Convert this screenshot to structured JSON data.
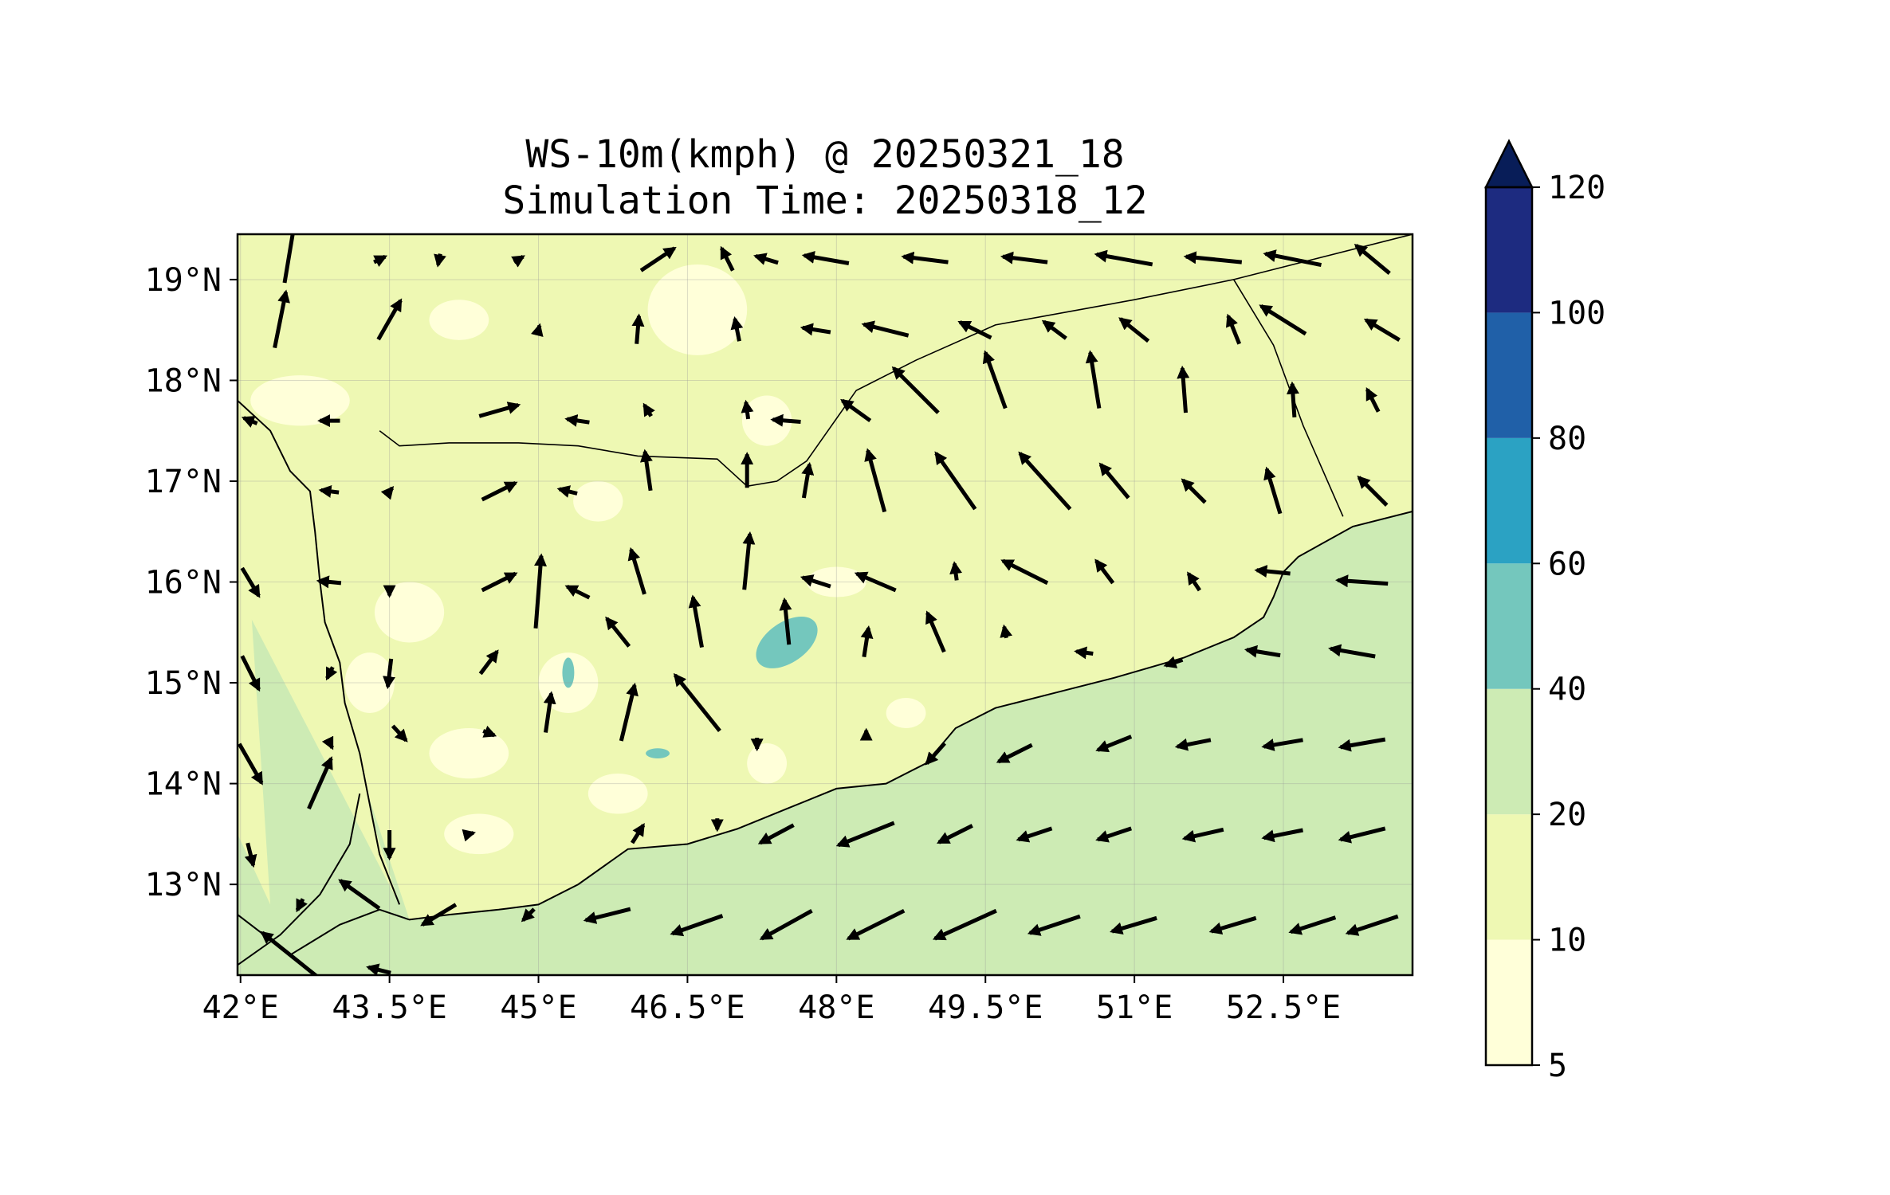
{
  "title_line1": "WS-10m(kmph) @ 20250321_18",
  "title_line2": "Simulation Time: 20250318_12",
  "map": {
    "lon_range": [
      41.97,
      53.8
    ],
    "lat_range": [
      12.1,
      19.45
    ],
    "lon_ticks": [
      {
        "value": 42,
        "label": "42°E"
      },
      {
        "value": 43.5,
        "label": "43.5°E"
      },
      {
        "value": 45,
        "label": "45°E"
      },
      {
        "value": 46.5,
        "label": "46.5°E"
      },
      {
        "value": 48,
        "label": "48°E"
      },
      {
        "value": 49.5,
        "label": "49.5°E"
      },
      {
        "value": 51,
        "label": "51°E"
      },
      {
        "value": 52.5,
        "label": "52.5°E"
      }
    ],
    "lat_ticks": [
      {
        "value": 13,
        "label": "13°N"
      },
      {
        "value": 14,
        "label": "14°N"
      },
      {
        "value": 15,
        "label": "15°N"
      },
      {
        "value": 16,
        "label": "16°N"
      },
      {
        "value": 17,
        "label": "17°N"
      },
      {
        "value": 18,
        "label": "18°N"
      },
      {
        "value": 19,
        "label": "19°N"
      }
    ],
    "gridlines": true,
    "coastline": [
      [
        41.97,
        12.7
      ],
      [
        42.5,
        12.3
      ],
      [
        43.0,
        12.6
      ],
      [
        43.4,
        12.75
      ],
      [
        43.7,
        12.65
      ],
      [
        44.1,
        12.7
      ],
      [
        44.6,
        12.75
      ],
      [
        45.0,
        12.8
      ],
      [
        45.4,
        13.0
      ],
      [
        45.9,
        13.35
      ],
      [
        46.5,
        13.4
      ],
      [
        47.0,
        13.55
      ],
      [
        47.5,
        13.75
      ],
      [
        48.0,
        13.95
      ],
      [
        48.5,
        14.0
      ],
      [
        48.9,
        14.2
      ],
      [
        49.2,
        14.55
      ],
      [
        49.6,
        14.75
      ],
      [
        50.2,
        14.9
      ],
      [
        50.8,
        15.05
      ],
      [
        51.5,
        15.25
      ],
      [
        52.0,
        15.45
      ],
      [
        52.3,
        15.65
      ],
      [
        52.4,
        15.85
      ],
      [
        52.5,
        16.1
      ],
      [
        52.65,
        16.25
      ],
      [
        53.2,
        16.55
      ],
      [
        53.8,
        16.7
      ]
    ],
    "red_sea_coast": [
      [
        41.97,
        17.8
      ],
      [
        42.3,
        17.5
      ],
      [
        42.5,
        17.1
      ],
      [
        42.7,
        16.9
      ],
      [
        42.75,
        16.5
      ],
      [
        42.8,
        16.0
      ],
      [
        42.85,
        15.6
      ],
      [
        43.0,
        15.2
      ],
      [
        43.05,
        14.8
      ],
      [
        43.2,
        14.3
      ],
      [
        43.3,
        13.8
      ],
      [
        43.4,
        13.3
      ],
      [
        43.6,
        12.8
      ]
    ],
    "borders": [
      [
        [
          43.4,
          17.5
        ],
        [
          43.6,
          17.35
        ],
        [
          44.1,
          17.38
        ],
        [
          44.8,
          17.38
        ],
        [
          45.4,
          17.35
        ],
        [
          46.0,
          17.25
        ],
        [
          46.8,
          17.22
        ],
        [
          47.1,
          16.95
        ],
        [
          47.4,
          17.0
        ],
        [
          47.7,
          17.2
        ],
        [
          48.2,
          17.9
        ],
        [
          48.8,
          18.2
        ],
        [
          49.6,
          18.55
        ],
        [
          51.0,
          18.8
        ],
        [
          52.0,
          19.0
        ],
        [
          52.4,
          18.35
        ],
        [
          52.7,
          17.55
        ],
        [
          53.1,
          16.65
        ]
      ],
      [
        [
          52.0,
          19.0
        ],
        [
          53.8,
          19.45
        ]
      ]
    ],
    "eritrea_coast": [
      [
        41.97,
        12.2
      ],
      [
        42.4,
        12.5
      ],
      [
        42.8,
        12.9
      ],
      [
        43.1,
        13.4
      ],
      [
        43.2,
        13.9
      ]
    ]
  },
  "wind_barbs": [
    {
      "lon": 42.5,
      "lat": 19.3,
      "u": 1,
      "v": 6
    },
    {
      "lon": 43.4,
      "lat": 19.2,
      "u": 1,
      "v": 0.5
    },
    {
      "lon": 44.0,
      "lat": 19.2,
      "u": -0.2,
      "v": -1
    },
    {
      "lon": 44.8,
      "lat": 19.2,
      "u": 0.8,
      "v": 0.5
    },
    {
      "lon": 46.2,
      "lat": 19.2,
      "u": 3,
      "v": 2
    },
    {
      "lon": 46.9,
      "lat": 19.2,
      "u": -1,
      "v": 2
    },
    {
      "lon": 47.3,
      "lat": 19.2,
      "u": -2,
      "v": 0.6
    },
    {
      "lon": 47.9,
      "lat": 19.2,
      "u": -4,
      "v": 0.7
    },
    {
      "lon": 48.9,
      "lat": 19.2,
      "u": -4,
      "v": 0.5
    },
    {
      "lon": 49.9,
      "lat": 19.2,
      "u": -4,
      "v": 0.5
    },
    {
      "lon": 50.9,
      "lat": 19.2,
      "u": -5,
      "v": 0.9
    },
    {
      "lon": 51.8,
      "lat": 19.2,
      "u": -5,
      "v": 0.5
    },
    {
      "lon": 52.6,
      "lat": 19.2,
      "u": -5,
      "v": 1
    },
    {
      "lon": 53.4,
      "lat": 19.2,
      "u": -3,
      "v": 2.5
    },
    {
      "lon": 42.4,
      "lat": 18.6,
      "u": 1,
      "v": 5
    },
    {
      "lon": 43.5,
      "lat": 18.6,
      "u": 2,
      "v": 3.5
    },
    {
      "lon": 45.0,
      "lat": 18.5,
      "u": 0.2,
      "v": 0.8
    },
    {
      "lon": 46.0,
      "lat": 18.5,
      "u": 0.2,
      "v": 2.5
    },
    {
      "lon": 47.0,
      "lat": 18.5,
      "u": -0.4,
      "v": 2
    },
    {
      "lon": 47.8,
      "lat": 18.5,
      "u": -2.5,
      "v": 0.4
    },
    {
      "lon": 48.5,
      "lat": 18.5,
      "u": -4,
      "v": 1
    },
    {
      "lon": 49.4,
      "lat": 18.5,
      "u": -2.8,
      "v": 1.4
    },
    {
      "lon": 50.2,
      "lat": 18.5,
      "u": -2,
      "v": 1.5
    },
    {
      "lon": 51.0,
      "lat": 18.5,
      "u": -2.5,
      "v": 2
    },
    {
      "lon": 52.0,
      "lat": 18.5,
      "u": -1,
      "v": 2.5
    },
    {
      "lon": 52.5,
      "lat": 18.6,
      "u": -4,
      "v": 2.5
    },
    {
      "lon": 53.5,
      "lat": 18.5,
      "u": -3,
      "v": 1.8
    },
    {
      "lon": 42.1,
      "lat": 17.6,
      "u": -1.2,
      "v": 0.5
    },
    {
      "lon": 42.9,
      "lat": 17.6,
      "u": -1.8,
      "v": 0
    },
    {
      "lon": 44.6,
      "lat": 17.7,
      "u": 3.5,
      "v": 1
    },
    {
      "lon": 45.4,
      "lat": 17.6,
      "u": -2,
      "v": 0.3
    },
    {
      "lon": 46.1,
      "lat": 17.7,
      "u": -0.6,
      "v": 1
    },
    {
      "lon": 47.1,
      "lat": 17.7,
      "u": -0.2,
      "v": 1.5
    },
    {
      "lon": 47.5,
      "lat": 17.6,
      "u": -2.5,
      "v": 0.2
    },
    {
      "lon": 48.2,
      "lat": 17.7,
      "u": -2.5,
      "v": 1.8
    },
    {
      "lon": 48.8,
      "lat": 17.9,
      "u": -4,
      "v": 4
    },
    {
      "lon": 49.6,
      "lat": 18.0,
      "u": -1.8,
      "v": 5
    },
    {
      "lon": 50.6,
      "lat": 18.0,
      "u": -0.8,
      "v": 5
    },
    {
      "lon": 51.5,
      "lat": 17.9,
      "u": -0.3,
      "v": 4
    },
    {
      "lon": 52.6,
      "lat": 17.8,
      "u": -0.2,
      "v": 3
    },
    {
      "lon": 53.4,
      "lat": 17.8,
      "u": -1,
      "v": 2
    },
    {
      "lon": 42.9,
      "lat": 16.9,
      "u": -1.6,
      "v": 0.2
    },
    {
      "lon": 43.5,
      "lat": 16.9,
      "u": 0.5,
      "v": 0.6
    },
    {
      "lon": 44.6,
      "lat": 16.9,
      "u": 3,
      "v": 1.5
    },
    {
      "lon": 45.3,
      "lat": 16.9,
      "u": -1.6,
      "v": 0.4
    },
    {
      "lon": 46.1,
      "lat": 17.1,
      "u": -0.5,
      "v": 3.5
    },
    {
      "lon": 47.1,
      "lat": 17.1,
      "u": 0,
      "v": 3
    },
    {
      "lon": 47.7,
      "lat": 17.0,
      "u": 0.5,
      "v": 3
    },
    {
      "lon": 48.4,
      "lat": 17.0,
      "u": -1.5,
      "v": 5.5
    },
    {
      "lon": 49.2,
      "lat": 17.0,
      "u": -3.5,
      "v": 5
    },
    {
      "lon": 50.1,
      "lat": 17.0,
      "u": -4.5,
      "v": 5
    },
    {
      "lon": 50.8,
      "lat": 17.0,
      "u": -2.5,
      "v": 3
    },
    {
      "lon": 51.6,
      "lat": 16.9,
      "u": -2,
      "v": 2
    },
    {
      "lon": 52.4,
      "lat": 16.9,
      "u": -1.2,
      "v": 4
    },
    {
      "lon": 53.4,
      "lat": 16.9,
      "u": -2.5,
      "v": 2.5
    },
    {
      "lon": 42.1,
      "lat": 16.0,
      "u": 1.5,
      "v": -2.5
    },
    {
      "lon": 42.9,
      "lat": 16.0,
      "u": -2,
      "v": 0.2
    },
    {
      "lon": 43.5,
      "lat": 15.9,
      "u": 0,
      "v": -0.6
    },
    {
      "lon": 44.6,
      "lat": 16.0,
      "u": 3,
      "v": 1.5
    },
    {
      "lon": 45.4,
      "lat": 15.9,
      "u": -2,
      "v": 1
    },
    {
      "lon": 46.0,
      "lat": 16.1,
      "u": -1.2,
      "v": 4
    },
    {
      "lon": 47.1,
      "lat": 16.2,
      "u": 0.5,
      "v": 5
    },
    {
      "lon": 47.8,
      "lat": 16.0,
      "u": -2.5,
      "v": 0.8
    },
    {
      "lon": 48.4,
      "lat": 16.0,
      "u": -3.5,
      "v": 1.5
    },
    {
      "lon": 49.2,
      "lat": 16.1,
      "u": -0.2,
      "v": 1.5
    },
    {
      "lon": 49.9,
      "lat": 16.1,
      "u": -4,
      "v": 2
    },
    {
      "lon": 50.7,
      "lat": 16.1,
      "u": -1.5,
      "v": 2
    },
    {
      "lon": 51.6,
      "lat": 16.0,
      "u": -1,
      "v": 1.5
    },
    {
      "lon": 52.4,
      "lat": 16.1,
      "u": -3,
      "v": 0.3
    },
    {
      "lon": 53.3,
      "lat": 16.0,
      "u": -4.5,
      "v": 0.3
    },
    {
      "lon": 42.1,
      "lat": 15.1,
      "u": 1.5,
      "v": -3
    },
    {
      "lon": 42.9,
      "lat": 15.1,
      "u": -0.5,
      "v": -1
    },
    {
      "lon": 43.5,
      "lat": 15.1,
      "u": -0.3,
      "v": -2.5
    },
    {
      "lon": 44.5,
      "lat": 15.2,
      "u": 1.5,
      "v": 2
    },
    {
      "lon": 45.0,
      "lat": 15.9,
      "u": 0.5,
      "v": 6.5
    },
    {
      "lon": 45.8,
      "lat": 15.5,
      "u": -2,
      "v": 2.5
    },
    {
      "lon": 46.6,
      "lat": 15.6,
      "u": -0.8,
      "v": 4.5
    },
    {
      "lon": 47.5,
      "lat": 15.6,
      "u": -0.4,
      "v": 4
    },
    {
      "lon": 48.3,
      "lat": 15.4,
      "u": 0.4,
      "v": 2.6
    },
    {
      "lon": 49.0,
      "lat": 15.5,
      "u": -1.5,
      "v": 3.5
    },
    {
      "lon": 49.7,
      "lat": 15.5,
      "u": -0.2,
      "v": 1
    },
    {
      "lon": 50.5,
      "lat": 15.3,
      "u": -1.5,
      "v": 0.2
    },
    {
      "lon": 51.4,
      "lat": 15.2,
      "u": -1.5,
      "v": -0.5
    },
    {
      "lon": 52.3,
      "lat": 15.3,
      "u": -3,
      "v": 0.5
    },
    {
      "lon": 53.2,
      "lat": 15.3,
      "u": -4,
      "v": 0.7
    },
    {
      "lon": 42.1,
      "lat": 14.2,
      "u": 2,
      "v": -3.5
    },
    {
      "lon": 42.8,
      "lat": 14.0,
      "u": 2,
      "v": 4.5
    },
    {
      "lon": 42.9,
      "lat": 14.4,
      "u": 0.4,
      "v": -0.8
    },
    {
      "lon": 43.6,
      "lat": 14.5,
      "u": 1.2,
      "v": -1.3
    },
    {
      "lon": 44.5,
      "lat": 14.5,
      "u": 1,
      "v": -0.4
    },
    {
      "lon": 45.1,
      "lat": 14.7,
      "u": 0.5,
      "v": 3.5
    },
    {
      "lon": 45.9,
      "lat": 14.7,
      "u": 1.2,
      "v": 5
    },
    {
      "lon": 46.6,
      "lat": 14.8,
      "u": -4,
      "v": 5
    },
    {
      "lon": 47.2,
      "lat": 14.4,
      "u": 0,
      "v": -1
    },
    {
      "lon": 48.3,
      "lat": 14.5,
      "u": 0,
      "v": 0.5
    },
    {
      "lon": 49.0,
      "lat": 14.3,
      "u": -1.6,
      "v": -1.8
    },
    {
      "lon": 49.8,
      "lat": 14.3,
      "u": -3,
      "v": -1.5
    },
    {
      "lon": 50.8,
      "lat": 14.4,
      "u": -3,
      "v": -1.2
    },
    {
      "lon": 51.6,
      "lat": 14.4,
      "u": -3,
      "v": -0.6
    },
    {
      "lon": 52.5,
      "lat": 14.4,
      "u": -3.5,
      "v": -0.6
    },
    {
      "lon": 53.3,
      "lat": 14.4,
      "u": -4,
      "v": -0.7
    },
    {
      "lon": 42.1,
      "lat": 13.3,
      "u": 0.5,
      "v": -2
    },
    {
      "lon": 43.5,
      "lat": 13.4,
      "u": 0,
      "v": -2.5
    },
    {
      "lon": 44.3,
      "lat": 13.5,
      "u": 0.8,
      "v": 0.2
    },
    {
      "lon": 46.0,
      "lat": 13.5,
      "u": 1,
      "v": 1.6
    },
    {
      "lon": 46.8,
      "lat": 13.6,
      "u": 0,
      "v": -1
    },
    {
      "lon": 47.4,
      "lat": 13.5,
      "u": -3,
      "v": -1.6
    },
    {
      "lon": 48.3,
      "lat": 13.5,
      "u": -5,
      "v": -2
    },
    {
      "lon": 49.2,
      "lat": 13.5,
      "u": -3,
      "v": -1.5
    },
    {
      "lon": 50.0,
      "lat": 13.5,
      "u": -3,
      "v": -1
    },
    {
      "lon": 50.8,
      "lat": 13.5,
      "u": -3,
      "v": -1
    },
    {
      "lon": 51.7,
      "lat": 13.5,
      "u": -3.5,
      "v": -0.8
    },
    {
      "lon": 52.5,
      "lat": 13.5,
      "u": -3.5,
      "v": -0.7
    },
    {
      "lon": 53.3,
      "lat": 13.5,
      "u": -4,
      "v": -1
    },
    {
      "lon": 42.6,
      "lat": 12.8,
      "u": -0.5,
      "v": -1
    },
    {
      "lon": 43.2,
      "lat": 12.9,
      "u": -3.5,
      "v": 2.5
    },
    {
      "lon": 44.0,
      "lat": 12.7,
      "u": -3,
      "v": -1.8
    },
    {
      "lon": 44.9,
      "lat": 12.7,
      "u": -1,
      "v": -1
    },
    {
      "lon": 45.7,
      "lat": 12.7,
      "u": -4,
      "v": -1
    },
    {
      "lon": 46.6,
      "lat": 12.6,
      "u": -4.5,
      "v": -1.6
    },
    {
      "lon": 47.5,
      "lat": 12.6,
      "u": -4.5,
      "v": -2.5
    },
    {
      "lon": 48.4,
      "lat": 12.6,
      "u": -5,
      "v": -2.5
    },
    {
      "lon": 49.3,
      "lat": 12.6,
      "u": -5.5,
      "v": -2.5
    },
    {
      "lon": 50.2,
      "lat": 12.6,
      "u": -4.5,
      "v": -1.5
    },
    {
      "lon": 51.0,
      "lat": 12.6,
      "u": -4,
      "v": -1.2
    },
    {
      "lon": 52.0,
      "lat": 12.6,
      "u": -4,
      "v": -1.2
    },
    {
      "lon": 52.8,
      "lat": 12.6,
      "u": -4,
      "v": -1.3
    },
    {
      "lon": 53.4,
      "lat": 12.6,
      "u": -4.5,
      "v": -1.5
    },
    {
      "lon": 42.5,
      "lat": 12.3,
      "u": -5,
      "v": 4
    },
    {
      "lon": 43.4,
      "lat": 12.15,
      "u": -2,
      "v": 0.5
    }
  ],
  "colorbar": {
    "levels": [
      {
        "value": 5,
        "label": "5"
      },
      {
        "value": 10,
        "label": "10"
      },
      {
        "value": 20,
        "label": "20"
      },
      {
        "value": 40,
        "label": "40"
      },
      {
        "value": 60,
        "label": "60"
      },
      {
        "value": 80,
        "label": "80"
      },
      {
        "value": 100,
        "label": "100"
      },
      {
        "value": 120,
        "label": "120"
      }
    ],
    "colors": [
      "#ffffd9",
      "#eef8b3",
      "#cdebb4",
      "#74c7bd",
      "#2ba2c3",
      "#2060a8",
      "#1d2b80"
    ],
    "extend_color": "#081d58",
    "extend": "max"
  },
  "field_colors": {
    "ocean": "#cdebb4",
    "land": "#eef8b3",
    "calm": "#ffffd9",
    "strong": "#74c7bd"
  }
}
